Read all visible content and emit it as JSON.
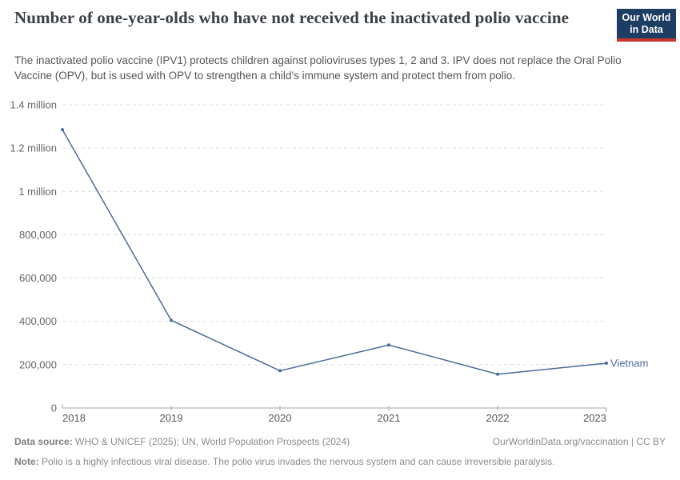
{
  "header": {
    "title": "Number of one-year-olds who have not received the inactivated polio vaccine",
    "subtitle": "The inactivated polio vaccine (IPV1) protects children against polioviruses types 1, 2 and 3. IPV does not replace the Oral Polio Vaccine (OPV), but is used with OPV to strengthen a child’s immune system and protect them from polio.",
    "logo": {
      "line1": "Our World",
      "line2": "in Data"
    }
  },
  "colors": {
    "logo_bg": "#1d3d63",
    "logo_accent": "#c9372c",
    "series_blue": "#4c6a9c",
    "grid": "#dcdcdc",
    "axis": "#a5a5a5"
  },
  "chart_data": {
    "type": "line",
    "title": "Number of one-year-olds who have not received the inactivated polio vaccine",
    "xlabel": "",
    "ylabel": "",
    "x": [
      2018,
      2019,
      2020,
      2021,
      2022,
      2023
    ],
    "xtick_labels": [
      "2018",
      "2019",
      "2020",
      "2021",
      "2022",
      "2023"
    ],
    "series": [
      {
        "name": "Vietnam",
        "values": [
          1285000,
          405000,
          172000,
          291000,
          156000,
          207000
        ],
        "color": "#4c6a9c"
      }
    ],
    "ylim": [
      0,
      1400000
    ],
    "yticks": [
      {
        "value": 0,
        "label": "0"
      },
      {
        "value": 200000,
        "label": "200,000"
      },
      {
        "value": 400000,
        "label": "400,000"
      },
      {
        "value": 600000,
        "label": "600,000"
      },
      {
        "value": 800000,
        "label": "800,000"
      },
      {
        "value": 1000000,
        "label": "1 million"
      },
      {
        "value": 1200000,
        "label": "1.2 million"
      },
      {
        "value": 1400000,
        "label": "1.4 million"
      }
    ],
    "grid": "dashed-horizontal",
    "legend_position": "end-of-line"
  },
  "footer": {
    "source_label": "Data source:",
    "source_text": " WHO & UNICEF (2025); UN, World Population Prospects (2024)",
    "right_text": "OurWorldinData.org/vaccination | CC BY",
    "note_label": "Note:",
    "note_text": " Polio is a highly infectious viral disease. The polio virus invades the nervous system and can cause irreversible paralysis."
  }
}
